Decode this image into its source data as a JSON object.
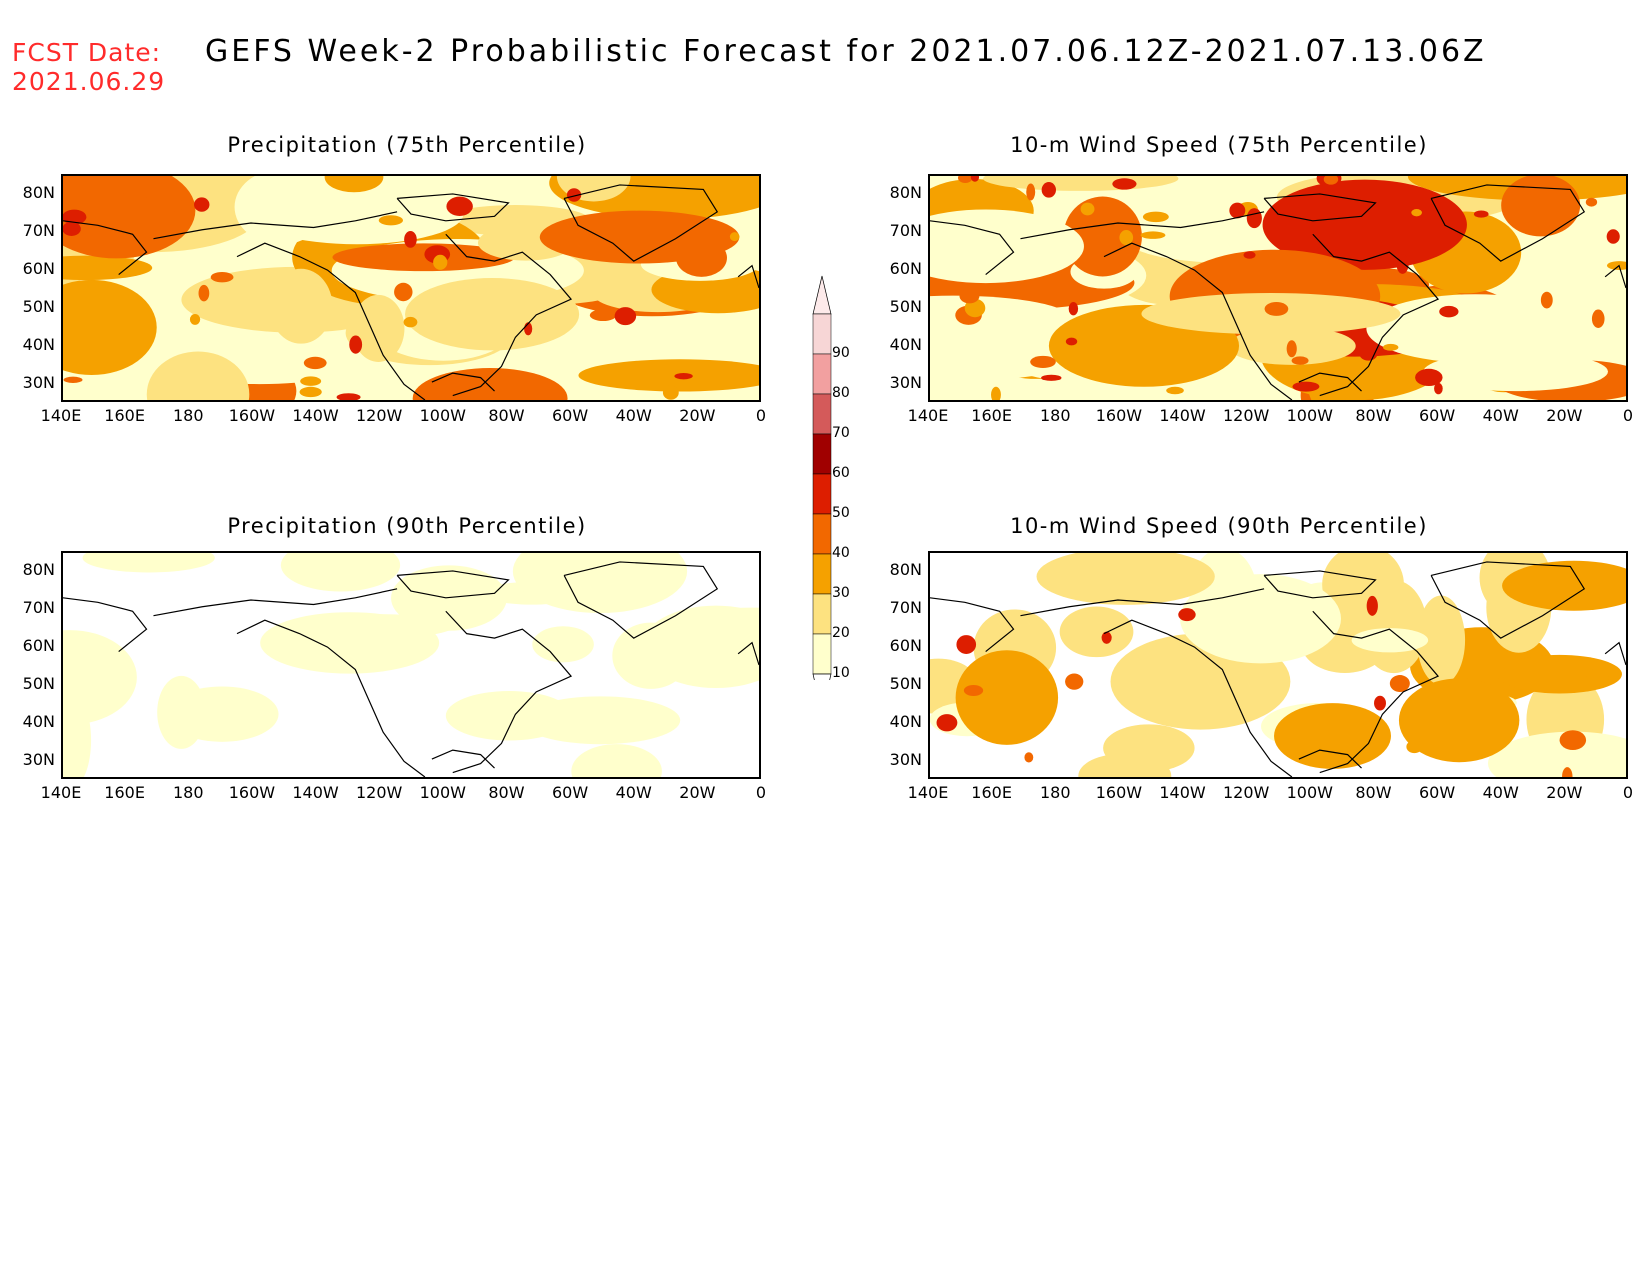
{
  "header": {
    "fcst_line1": "FCST Date:",
    "fcst_line2": "2021.06.29",
    "title": "GEFS Week-2 Probabilistic Forecast for 2021.07.06.12Z-2021.07.13.06Z"
  },
  "axes": {
    "lat_labels": [
      "80N",
      "70N",
      "60N",
      "50N",
      "40N",
      "30N"
    ],
    "lon_labels": [
      "140E",
      "160E",
      "180",
      "160W",
      "140W",
      "120W",
      "100W",
      "80W",
      "60W",
      "40W",
      "20W",
      "0"
    ]
  },
  "panels": [
    {
      "id": "p1",
      "title": "Precipitation (75th Percentile)",
      "intensity": 2
    },
    {
      "id": "p2",
      "title": "10-m Wind Speed (75th Percentile)",
      "intensity": 3
    },
    {
      "id": "p3",
      "title": "Precipitation (90th Percentile)",
      "intensity": 0
    },
    {
      "id": "p4",
      "title": "10-m Wind Speed (90th Percentile)",
      "intensity": 1
    }
  ],
  "colorbar": {
    "labels": [
      "90",
      "80",
      "70",
      "60",
      "50",
      "40",
      "30",
      "20",
      "10"
    ],
    "colors": [
      "#f7d6d6",
      "#f2a0a0",
      "#d45a5a",
      "#a00000",
      "#dd1e00",
      "#f26800",
      "#f5a100",
      "#fde280",
      "#ffffcc"
    ]
  },
  "colors": {
    "fcst_text": "#ff2b2b",
    "shade_10": "#ffffcc",
    "shade_20": "#fde280",
    "shade_30": "#f5a100",
    "shade_40": "#f26800",
    "shade_50": "#dd1e00",
    "shade_60": "#a00000"
  }
}
